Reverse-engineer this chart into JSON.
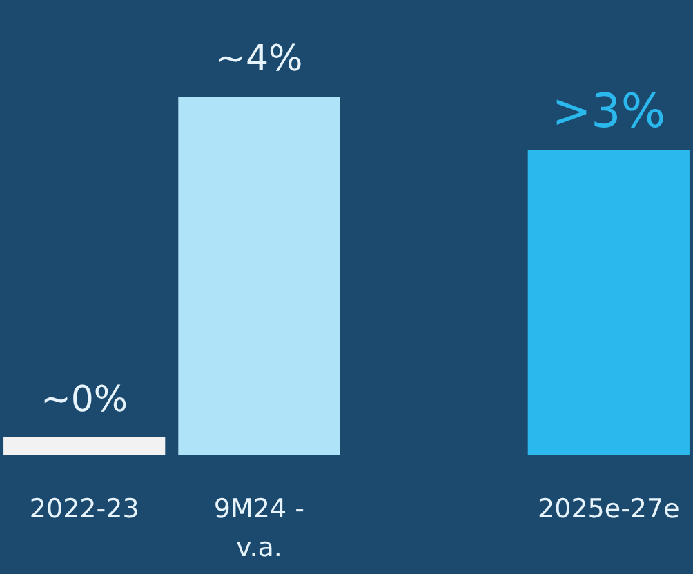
{
  "chart_data": {
    "type": "bar",
    "ylim": [
      0,
      4
    ],
    "tick_labels": false,
    "categories": [
      "2022-23",
      "9M24 -\nv.a.",
      null,
      "2025e-27e"
    ],
    "values": [
      0.2,
      4,
      null,
      3.4
    ],
    "colors": [
      "#f2f2f2",
      "#aee3f8",
      "#1b4a6e",
      "#2bb8ec"
    ],
    "value_labels": [
      "~0%",
      "~4%",
      null,
      ">3%"
    ]
  }
}
